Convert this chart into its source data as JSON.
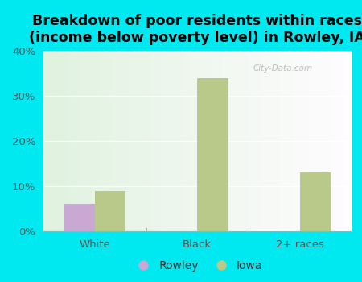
{
  "title": "Breakdown of poor residents within races\n(income below poverty level) in Rowley, IA",
  "categories": [
    "White",
    "Black",
    "2+ races"
  ],
  "rowley_values": [
    6.0,
    0.0,
    0.0
  ],
  "iowa_values": [
    9.0,
    34.0,
    13.0
  ],
  "rowley_color": "#c9a8d4",
  "iowa_color": "#b8c98a",
  "background_color": "#00e8f0",
  "plot_bg_top_left": "#c8e8c8",
  "plot_bg_bottom_right": "#f0f8f0",
  "ylim": [
    0,
    40
  ],
  "yticks": [
    0,
    10,
    20,
    30,
    40
  ],
  "bar_width": 0.3,
  "title_fontsize": 12.5,
  "tick_fontsize": 9.5,
  "legend_fontsize": 10,
  "watermark": "City-Data.com"
}
